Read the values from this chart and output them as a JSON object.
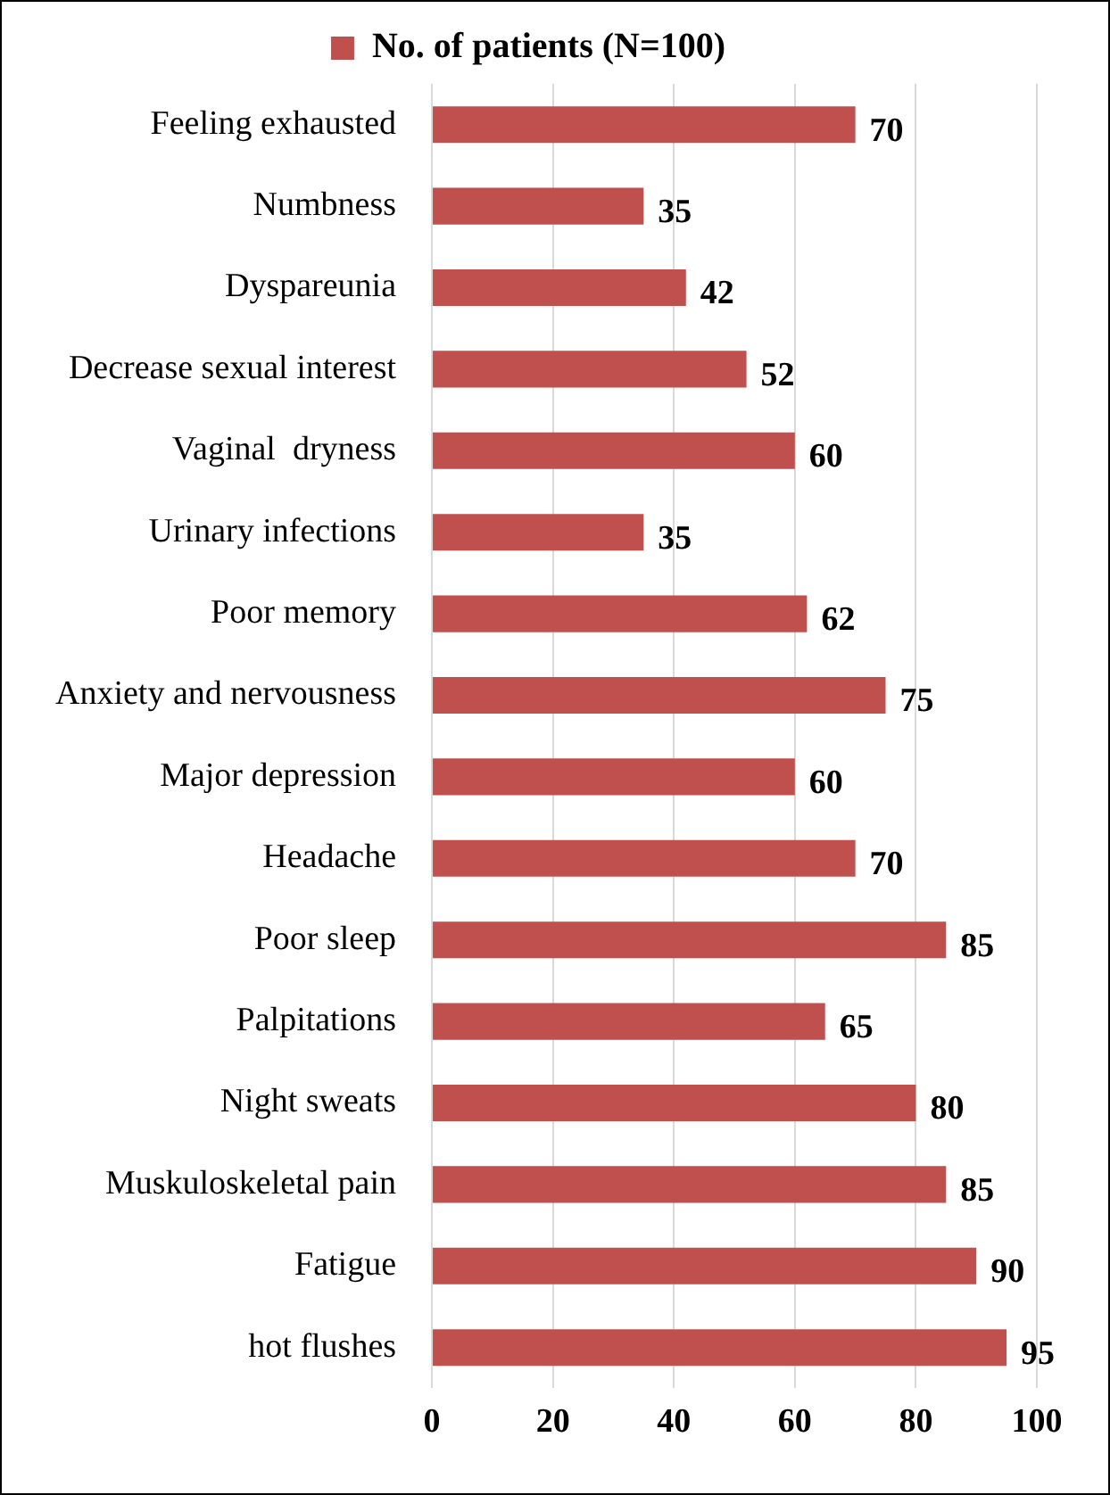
{
  "chart_data": {
    "type": "bar",
    "orientation": "horizontal",
    "categories": [
      "Feeling exhausted",
      "Numbness",
      "Dyspareunia",
      "Decrease sexual interest",
      "Vaginal  dryness",
      "Urinary infections",
      "Poor memory",
      "Anxiety and nervousness",
      "Major depression",
      "Headache",
      "Poor sleep",
      "Palpitations",
      "Night sweats",
      "Muskuloskeletal pain",
      "Fatigue",
      "hot flushes"
    ],
    "series": [
      {
        "name": "No. of patients (N=100)",
        "color": "#c0504d",
        "values": [
          70,
          35,
          42,
          52,
          60,
          35,
          62,
          75,
          60,
          70,
          85,
          65,
          80,
          85,
          90,
          95
        ]
      }
    ],
    "xlim": [
      0,
      100
    ],
    "xticks": [
      0,
      20,
      40,
      60,
      80,
      100
    ],
    "grid": "x",
    "legend": "top",
    "data_labels": true
  }
}
